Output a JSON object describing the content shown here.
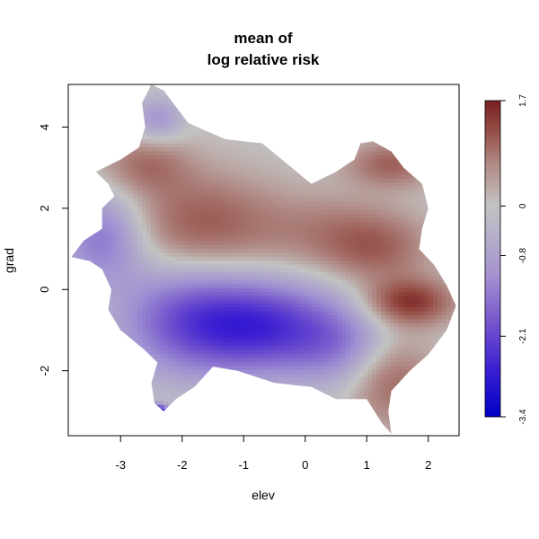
{
  "chart_data": {
    "type": "heatmap",
    "title_line1": "mean of",
    "title_line2": "log relative risk",
    "xlabel": "elev",
    "ylabel": "grad",
    "xlim": [
      -3.85,
      2.5
    ],
    "ylim": [
      -3.6,
      5.05
    ],
    "x_ticks": [
      -3,
      -2,
      -1,
      0,
      1,
      2
    ],
    "x_tick_labels": [
      "-3",
      "-2",
      "-1",
      "0",
      "1",
      "2"
    ],
    "y_ticks": [
      -2,
      0,
      2,
      4
    ],
    "y_tick_labels": [
      "-2",
      "0",
      "2",
      "4"
    ],
    "colorbar": {
      "ticks": [
        1.7,
        0,
        -0.8,
        -2.1,
        -3.4
      ],
      "tick_labels": [
        "1.7",
        "0",
        "-0.8",
        "-2.1",
        "-3.4"
      ],
      "range": [
        -3.4,
        1.7
      ],
      "colors": {
        "low": "#0000c8",
        "mid": "#c0c0c0",
        "high": "#7a2020"
      }
    },
    "region_outline": [
      [
        -2.5,
        5.05
      ],
      [
        -2.3,
        4.9
      ],
      [
        -2.1,
        4.5
      ],
      [
        -1.9,
        4.1
      ],
      [
        -1.6,
        3.9
      ],
      [
        -1.3,
        3.7
      ],
      [
        -0.7,
        3.6
      ],
      [
        -0.3,
        3.1
      ],
      [
        0.1,
        2.6
      ],
      [
        0.5,
        2.9
      ],
      [
        0.8,
        3.2
      ],
      [
        0.9,
        3.6
      ],
      [
        1.1,
        3.65
      ],
      [
        1.4,
        3.4
      ],
      [
        1.6,
        3.0
      ],
      [
        1.9,
        2.6
      ],
      [
        2.0,
        2.0
      ],
      [
        1.9,
        1.5
      ],
      [
        1.85,
        1.0
      ],
      [
        2.1,
        0.6
      ],
      [
        2.3,
        0.1
      ],
      [
        2.45,
        -0.4
      ],
      [
        2.3,
        -1.0
      ],
      [
        2.0,
        -1.6
      ],
      [
        1.7,
        -2.0
      ],
      [
        1.4,
        -2.5
      ],
      [
        1.35,
        -3.0
      ],
      [
        1.4,
        -3.55
      ],
      [
        1.25,
        -3.3
      ],
      [
        1.0,
        -2.7
      ],
      [
        0.5,
        -2.7
      ],
      [
        0.1,
        -2.4
      ],
      [
        -0.5,
        -2.3
      ],
      [
        -1.1,
        -2.0
      ],
      [
        -1.5,
        -1.9
      ],
      [
        -1.8,
        -2.4
      ],
      [
        -2.1,
        -2.7
      ],
      [
        -2.3,
        -3.0
      ],
      [
        -2.45,
        -2.8
      ],
      [
        -2.5,
        -2.3
      ],
      [
        -2.4,
        -1.8
      ],
      [
        -2.6,
        -1.5
      ],
      [
        -3.0,
        -1.0
      ],
      [
        -3.2,
        -0.5
      ],
      [
        -3.15,
        0
      ],
      [
        -3.3,
        0.5
      ],
      [
        -3.5,
        0.7
      ],
      [
        -3.8,
        0.8
      ],
      [
        -3.6,
        1.2
      ],
      [
        -3.3,
        1.5
      ],
      [
        -3.3,
        2.0
      ],
      [
        -3.1,
        2.3
      ],
      [
        -3.2,
        2.6
      ],
      [
        -3.4,
        2.9
      ],
      [
        -3.0,
        3.2
      ],
      [
        -2.7,
        3.5
      ],
      [
        -2.6,
        4.0
      ],
      [
        -2.65,
        4.6
      ]
    ],
    "surface_components": [
      {
        "x": -0.7,
        "y": -0.9,
        "amp": -2.2,
        "sx": 0.9,
        "sy": 0.8
      },
      {
        "x": -2.0,
        "y": -0.7,
        "amp": -1.4,
        "sx": 0.8,
        "sy": 1.0
      },
      {
        "x": -3.3,
        "y": 1.3,
        "amp": -1.4,
        "sx": 0.5,
        "sy": 0.8
      },
      {
        "x": -2.4,
        "y": 4.2,
        "amp": -0.9,
        "sx": 0.3,
        "sy": 0.4
      },
      {
        "x": 0.6,
        "y": -1.4,
        "amp": -0.9,
        "sx": 0.6,
        "sy": 0.7
      },
      {
        "x": -2.4,
        "y": -3.0,
        "amp": -3.0,
        "sx": 0.12,
        "sy": 0.12
      },
      {
        "x": -1.7,
        "y": 1.6,
        "amp": 1.1,
        "sx": 0.9,
        "sy": 0.9
      },
      {
        "x": -2.6,
        "y": 3.1,
        "amp": 0.8,
        "sx": 0.5,
        "sy": 0.5
      },
      {
        "x": 1.7,
        "y": -0.3,
        "amp": 1.5,
        "sx": 0.5,
        "sy": 0.4
      },
      {
        "x": 1.4,
        "y": 3.1,
        "amp": 1.0,
        "sx": 0.5,
        "sy": 0.4
      },
      {
        "x": 0.4,
        "y": 1.4,
        "amp": 0.6,
        "sx": 0.8,
        "sy": 0.7
      },
      {
        "x": 1.4,
        "y": -2.2,
        "amp": 1.0,
        "sx": 0.5,
        "sy": 0.8
      },
      {
        "x": 1.2,
        "y": 1.0,
        "amp": 0.8,
        "sx": 0.6,
        "sy": 0.6
      }
    ]
  }
}
